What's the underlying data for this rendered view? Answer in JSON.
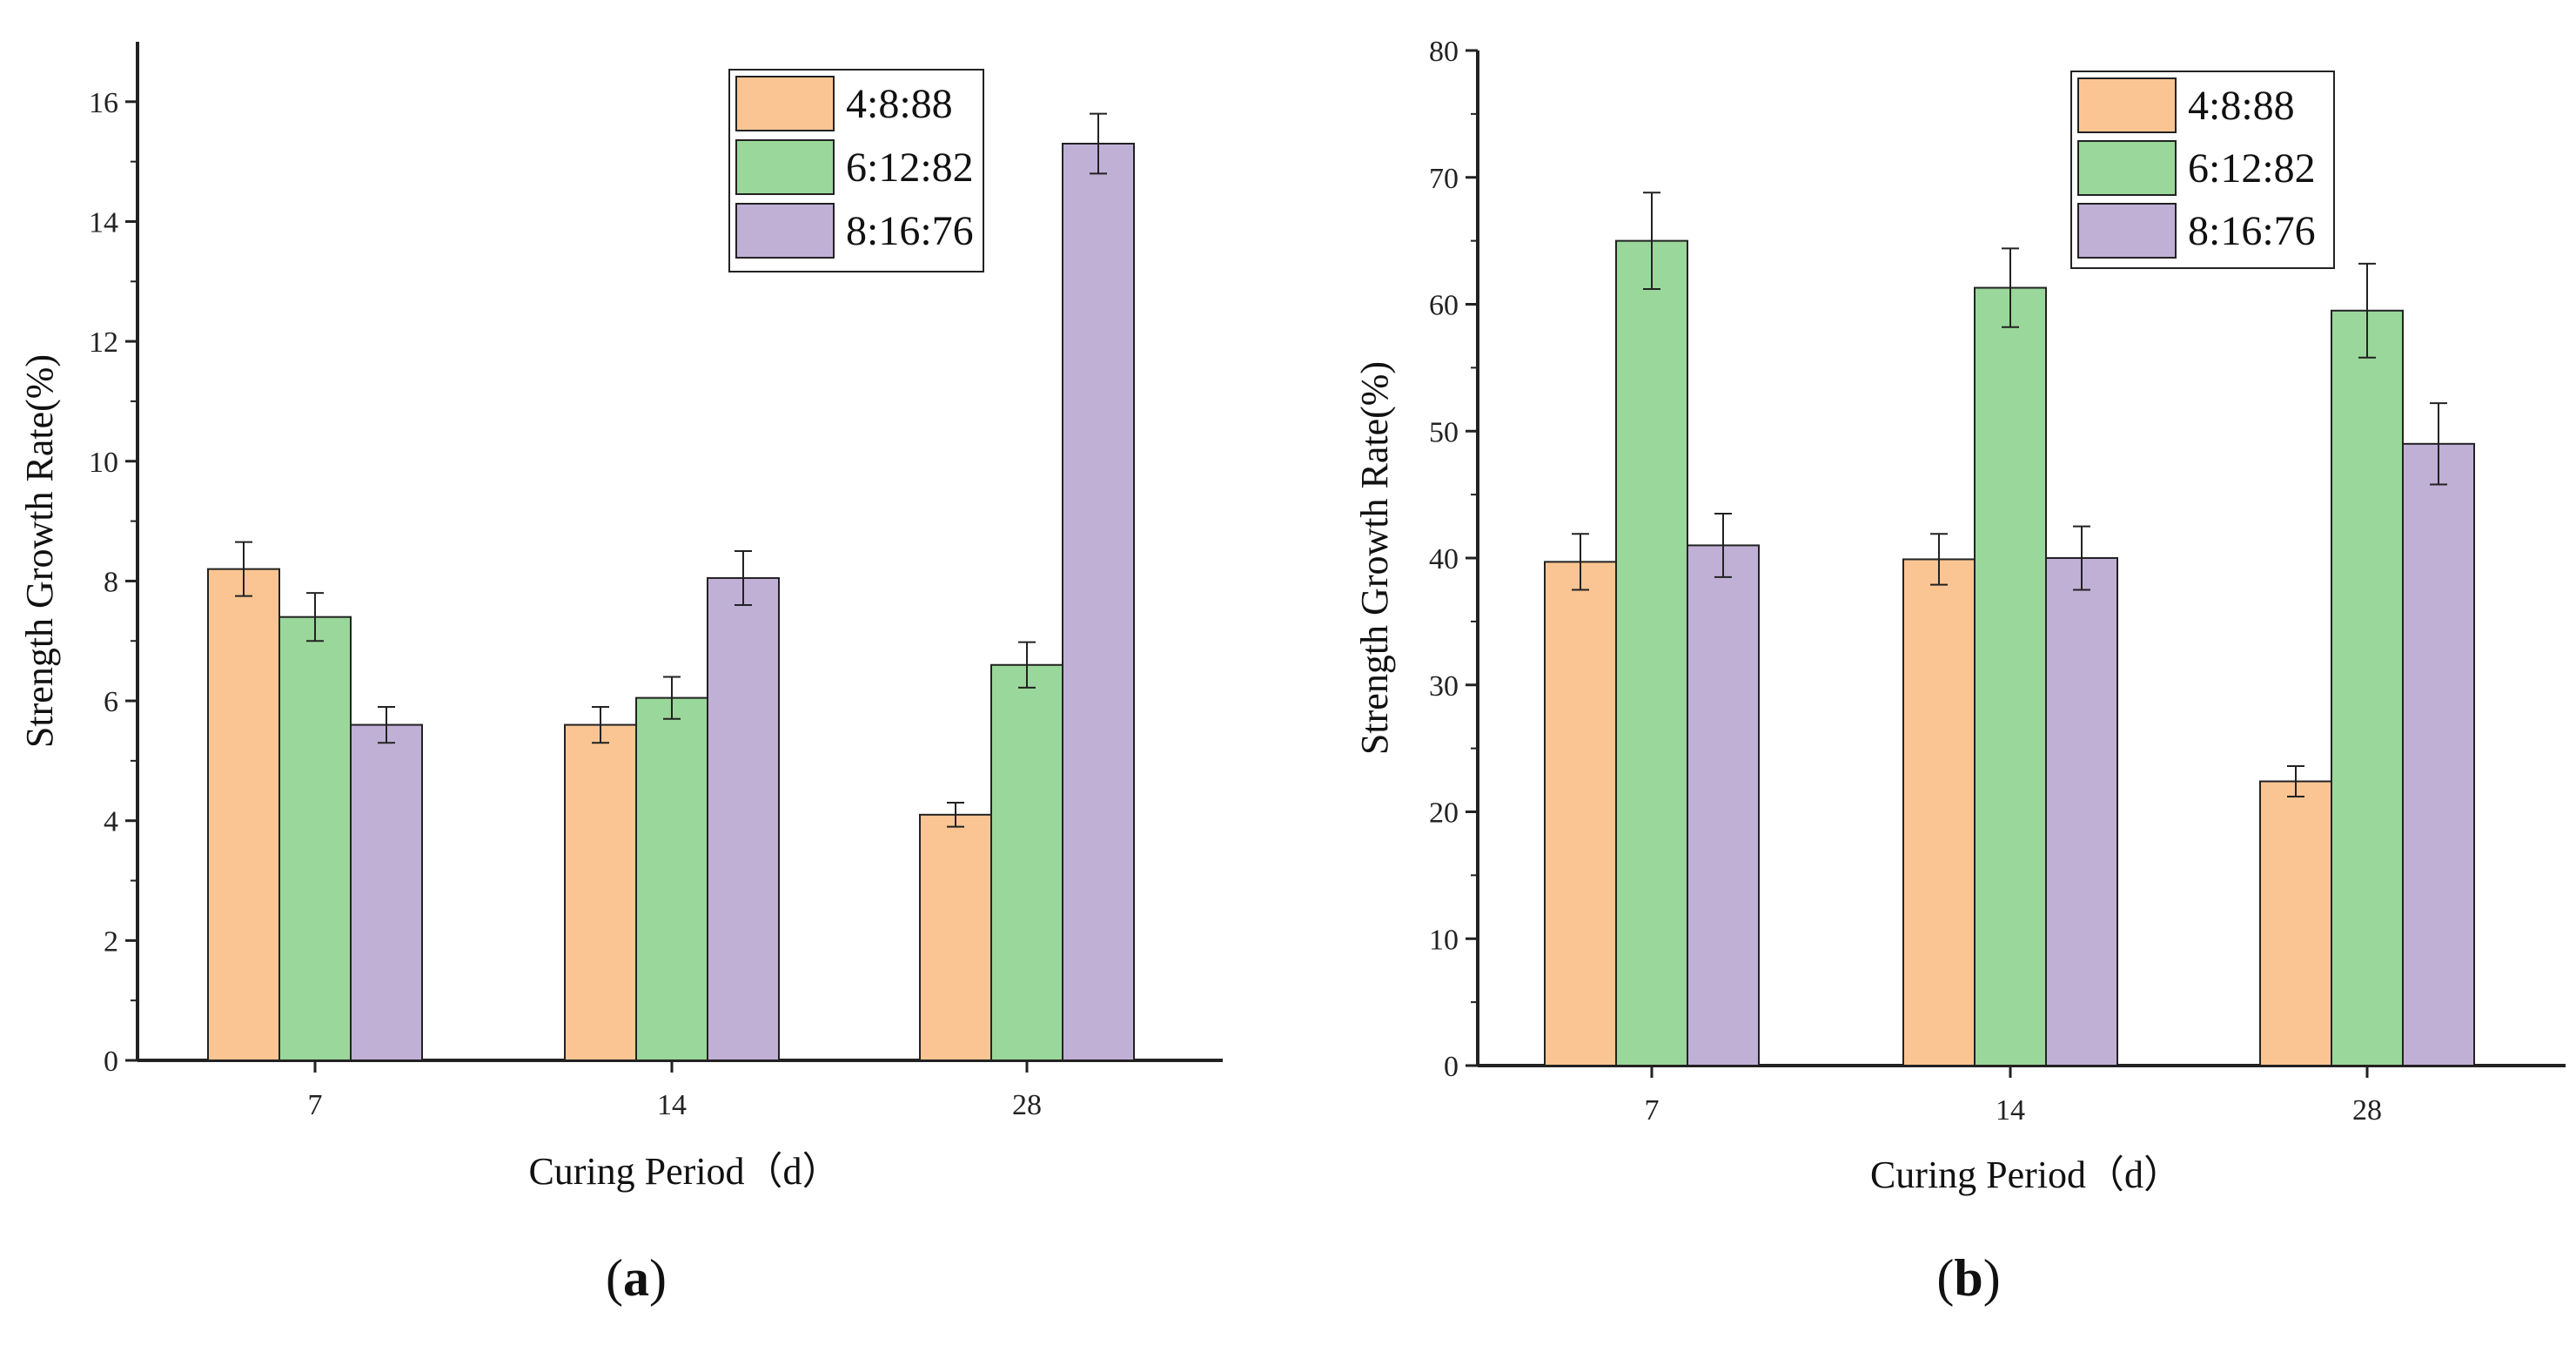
{
  "colors": {
    "s1": "#fbc593",
    "s2": "#9ad79a",
    "s3": "#c0b0d6",
    "stroke": "#222222"
  },
  "chart_data": [
    {
      "type": "bar",
      "panel": "a",
      "caption_open": "(",
      "caption_letter": "a",
      "caption_close": ")",
      "categories": [
        "7",
        "14",
        "28"
      ],
      "xlabel": "Curing Period（d）",
      "ylabel": "Strength Growth Rate(%)",
      "ylim": [
        0,
        17
      ],
      "yticks": [
        0,
        2,
        4,
        6,
        8,
        10,
        12,
        14,
        16
      ],
      "legend_position": "top-right",
      "series": [
        {
          "name": "4:8:88",
          "values": [
            8.2,
            5.6,
            4.1
          ],
          "errors": [
            0.45,
            0.3,
            0.2
          ]
        },
        {
          "name": "6:12:82",
          "values": [
            7.4,
            6.05,
            6.6
          ],
          "errors": [
            0.4,
            0.35,
            0.38
          ]
        },
        {
          "name": "8:16:76",
          "values": [
            5.6,
            8.05,
            15.3
          ],
          "errors": [
            0.3,
            0.45,
            0.5
          ]
        }
      ]
    },
    {
      "type": "bar",
      "panel": "b",
      "caption_open": "(",
      "caption_letter": "b",
      "caption_close": ")",
      "categories": [
        "7",
        "14",
        "28"
      ],
      "xlabel": "Curing Period（d）",
      "ylabel": "Strength Growth Rate(%)",
      "ylim": [
        0,
        80
      ],
      "yticks": [
        0,
        10,
        20,
        30,
        40,
        50,
        60,
        70,
        80
      ],
      "legend_position": "top-right",
      "series": [
        {
          "name": "4:8:88",
          "values": [
            39.7,
            39.9,
            22.4
          ],
          "errors": [
            2.2,
            2.0,
            1.2
          ]
        },
        {
          "name": "6:12:82",
          "values": [
            65.0,
            61.3,
            59.5
          ],
          "errors": [
            3.8,
            3.1,
            3.7
          ]
        },
        {
          "name": "8:16:76",
          "values": [
            41.0,
            40.0,
            49.0
          ],
          "errors": [
            2.5,
            2.5,
            3.2
          ]
        }
      ]
    }
  ]
}
